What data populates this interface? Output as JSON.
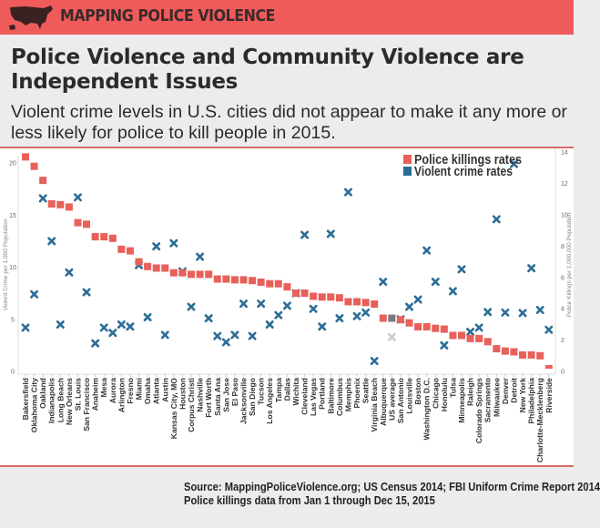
{
  "header": {
    "brand": "MAPPING POLICE VIOLENCE"
  },
  "title": "Police Violence and Community Violence are Independent Issues",
  "subtitle": "Violent crime levels in U.S. cities did not appear to make it any more or less likely for police to kill people in 2015.",
  "source": {
    "line1": "Source: MappingPoliceViolence.org; US Census 2014; FBI Uniform Crime Report 2014",
    "line2": "Police killings data from Jan 1 through Dec 15, 2015"
  },
  "chart_data": {
    "type": "scatter",
    "ylabel_left": "Violent Crime per 1,000 Population",
    "ylabel_right": "Police Killings per 1,000,000 Population",
    "ylim_left": [
      0,
      21
    ],
    "ylim_right": [
      0,
      14
    ],
    "yticks_left": [
      "0",
      "5",
      "10",
      "15",
      "20"
    ],
    "yticks_right": [
      "0",
      "2",
      "4",
      "6",
      "8",
      "10",
      "12",
      "14"
    ],
    "legend_position": "top-right",
    "grid": false,
    "colors": {
      "police": "#e8605a",
      "crime": "#2b6d96",
      "us_average_police": "#7a7a7a",
      "us_average_crime": "#cccccc"
    },
    "categories": [
      "Bakersfield",
      "Oklahoma City",
      "Oakland",
      "Indianapolis",
      "Long Beach",
      "New Orleans",
      "St. Louis",
      "San Francisco",
      "Anaheim",
      "Mesa",
      "Aurora",
      "Arlington",
      "Fresno",
      "Miami",
      "Omaha",
      "Atlanta",
      "Austin",
      "Kansas City, MO",
      "Houston",
      "Corpus Christi",
      "Nashville",
      "Fort Worth",
      "Santa Ana",
      "San Jose",
      "El Paso",
      "Jacksonville",
      "San Diego",
      "Tucson",
      "Los Angeles",
      "Tampa",
      "Dallas",
      "Wichita",
      "Cleveland",
      "Las Vegas",
      "Portland",
      "Baltimore",
      "Columbus",
      "Memphis",
      "Phoenix",
      "Seattle",
      "Virginia Beach",
      "Albuquerque",
      "US average",
      "San Antonio",
      "Louisville",
      "Boston",
      "Washington D.C.",
      "Chicago",
      "Honolulu",
      "Tulsa",
      "Minneapolis",
      "Raleigh",
      "Colorado Springs",
      "Sacramento",
      "Milwaukee",
      "Denver",
      "Detroit",
      "New York",
      "Philadelphia",
      "Charlotte-Mecklenberg",
      "Riverside"
    ],
    "highlight_category": "US average",
    "series": [
      {
        "name": "Police killings rates",
        "axis": "right",
        "marker": "square",
        "values": [
          13.7,
          13.1,
          12.2,
          10.7,
          10.65,
          10.5,
          9.5,
          9.4,
          8.6,
          8.6,
          8.5,
          7.8,
          7.7,
          7.0,
          6.7,
          6.6,
          6.6,
          6.3,
          6.3,
          6.2,
          6.2,
          6.2,
          5.9,
          5.9,
          5.85,
          5.85,
          5.8,
          5.7,
          5.6,
          5.6,
          5.4,
          5.0,
          5.0,
          4.8,
          4.75,
          4.75,
          4.7,
          4.45,
          4.45,
          4.4,
          4.3,
          3.4,
          3.4,
          3.3,
          3.1,
          2.85,
          2.85,
          2.75,
          2.7,
          2.3,
          2.3,
          2.1,
          2.1,
          1.9,
          1.45,
          1.3,
          1.25,
          1.05,
          1.05,
          1.0,
          0.0
        ]
      },
      {
        "name": "Violent crime rates",
        "axis": "left",
        "marker": "x",
        "values": [
          4.2,
          7.4,
          16.6,
          12.5,
          4.5,
          9.5,
          16.7,
          7.6,
          2.7,
          4.2,
          3.7,
          4.5,
          4.3,
          10.2,
          5.2,
          12.0,
          3.5,
          12.3,
          9.6,
          6.2,
          11.0,
          5.1,
          3.4,
          2.8,
          3.5,
          6.5,
          3.4,
          6.5,
          4.5,
          5.4,
          6.3,
          7.5,
          13.1,
          6.0,
          4.3,
          13.2,
          5.1,
          17.2,
          5.3,
          5.65,
          1.0,
          8.6,
          3.3,
          5.0,
          6.2,
          6.9,
          11.6,
          8.6,
          2.5,
          7.7,
          9.8,
          3.8,
          4.2,
          5.7,
          14.6,
          5.65,
          19.9,
          5.6,
          9.9,
          5.9,
          4.0
        ]
      }
    ]
  }
}
